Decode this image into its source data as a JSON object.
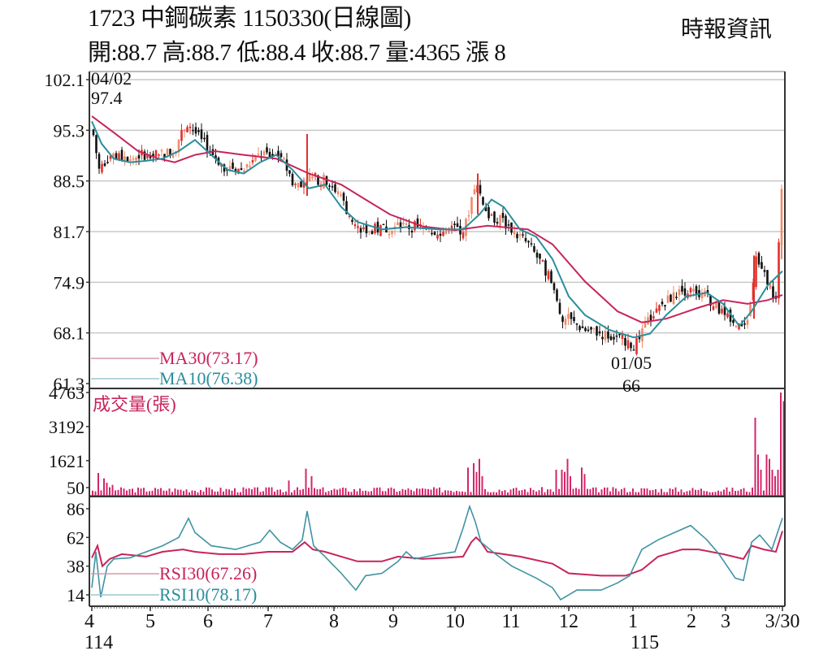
{
  "header": {
    "title": "1723  中鋼碳素 1150330(日線圖)",
    "subtitle": "開:88.7 高:88.7 低:88.4 收:88.7 量:4365 漲 8",
    "source": "時報資訊"
  },
  "colors": {
    "ma30": "#c8245a",
    "ma10": "#2a8e9c",
    "rsi30": "#c8245a",
    "rsi10": "#3f93a3",
    "volume": "#d4256a",
    "up_candle": "#e0302a",
    "up_candle_light": "#f08a6a",
    "down_candle": "#111111",
    "grid": "#c8c8c8",
    "axis": "#333333"
  },
  "chart_data": [
    {
      "type": "candlestick",
      "title": "1723 中鋼碳素 日線圖",
      "panel": "price",
      "y_ticks": [
        102.1,
        95.3,
        88.5,
        81.7,
        74.9,
        68.1,
        61.3
      ],
      "ylim": [
        60.5,
        103
      ],
      "grid": true,
      "annotations": [
        {
          "label": "04/02",
          "value": "97.4",
          "note": "high"
        },
        {
          "label": "01/05",
          "value": "66",
          "note": "low"
        }
      ],
      "legend": [
        {
          "name": "MA30",
          "value": "73.17",
          "color": "#c8245a"
        },
        {
          "name": "MA10",
          "value": "76.38",
          "color": "#2a8e9c"
        }
      ],
      "series": [
        {
          "name": "Close (approx. monthly path)",
          "x": [
            "114/4",
            "114/5",
            "114/5 late",
            "114/6",
            "114/7",
            "114/7 late",
            "114/8",
            "114/9",
            "114/10 early",
            "114/10 spike",
            "114/11",
            "114/12",
            "115/1/05",
            "115/2",
            "115/3",
            "115/3 spike",
            "115/3/30"
          ],
          "values": [
            95.5,
            91.5,
            96.5,
            90.0,
            92.0,
            87.0,
            87.5,
            82.0,
            82.0,
            88.5,
            80.0,
            68.5,
            66.0,
            74.0,
            68.5,
            77.0,
            88.7
          ]
        },
        {
          "name": "MA30",
          "x": [
            "114/4",
            "114/5",
            "114/6",
            "114/7",
            "114/8",
            "114/9",
            "114/10",
            "114/11",
            "114/12",
            "115/1",
            "115/2",
            "115/3",
            "115/3/30"
          ],
          "values": [
            97.0,
            91.0,
            92.5,
            91.5,
            87.5,
            82.5,
            82.0,
            81.8,
            77.0,
            70.0,
            72.0,
            72.0,
            73.17
          ]
        },
        {
          "name": "MA10",
          "x": [
            "114/4",
            "114/5",
            "114/6",
            "114/7",
            "114/8",
            "114/9",
            "114/10",
            "114/11",
            "114/12",
            "115/1",
            "115/2",
            "115/3",
            "115/3/30"
          ],
          "values": [
            96.5,
            90.5,
            94.0,
            91.0,
            86.0,
            82.0,
            82.0,
            80.5,
            72.0,
            67.5,
            73.5,
            69.0,
            76.38
          ]
        }
      ]
    },
    {
      "type": "bar",
      "panel": "volume",
      "title": "成交量(張)",
      "y_ticks": [
        4763,
        3192,
        1621,
        50
      ],
      "ylim": [
        0,
        4763
      ],
      "series": [
        {
          "name": "Volume (notable peaks)",
          "x": [
            "114/4",
            "114/7 late",
            "114/10",
            "114/11",
            "115/3 mid",
            "115/3/29",
            "115/3/30"
          ],
          "values": [
            1000,
            1300,
            1700,
            1600,
            3600,
            4763,
            4365
          ]
        }
      ]
    },
    {
      "type": "line",
      "panel": "rsi",
      "y_ticks": [
        86,
        62,
        38,
        14
      ],
      "ylim": [
        5,
        92
      ],
      "legend": [
        {
          "name": "RSI30",
          "value": "67.26",
          "color": "#c8245a"
        },
        {
          "name": "RSI10",
          "value": "78.17",
          "color": "#3f93a3"
        }
      ],
      "series": [
        {
          "name": "RSI30",
          "x": [
            "114/4",
            "114/5",
            "114/6",
            "114/7",
            "114/7 late",
            "114/8",
            "114/9",
            "114/10",
            "114/11",
            "114/12",
            "115/1",
            "115/2",
            "115/3",
            "115/3/30"
          ],
          "values": [
            50,
            46,
            48,
            52,
            55,
            44,
            44,
            60,
            44,
            28,
            30,
            54,
            50,
            67.26
          ]
        },
        {
          "name": "RSI10",
          "x": [
            "114/4",
            "114/5",
            "114/6",
            "114/6 peak",
            "114/7",
            "114/7 late",
            "114/8",
            "114/9",
            "114/10",
            "114/11",
            "114/12",
            "115/1",
            "115/2",
            "115/3",
            "115/3/30"
          ],
          "values": [
            20,
            48,
            55,
            78,
            52,
            84,
            18,
            44,
            88,
            33,
            10,
            30,
            68,
            28,
            78.17
          ]
        }
      ]
    }
  ],
  "axes": {
    "price_ticks": [
      "102.1",
      "95.3",
      "88.5",
      "81.7",
      "74.9",
      "68.1",
      "61.3"
    ],
    "volume_ticks": [
      "4763",
      "3192",
      "1621",
      "50"
    ],
    "rsi_ticks": [
      "86",
      "62",
      "38",
      "14"
    ],
    "x_ticks": [
      "4",
      "5",
      "6",
      "7",
      "8",
      "9",
      "10",
      "11",
      "12",
      "1",
      "2",
      "3",
      "3/30"
    ],
    "x_year_labels": [
      "114",
      "115"
    ]
  },
  "annotations": {
    "high_date": "04/02",
    "high_value": "97.4",
    "low_date": "01/05",
    "low_value": "66"
  },
  "legends": {
    "ma30": "MA30(73.17)",
    "ma10": "MA10(76.38)",
    "volume_title": "成交量(張)",
    "rsi30": "RSI30(67.26)",
    "rsi10": "RSI10(78.17)"
  }
}
